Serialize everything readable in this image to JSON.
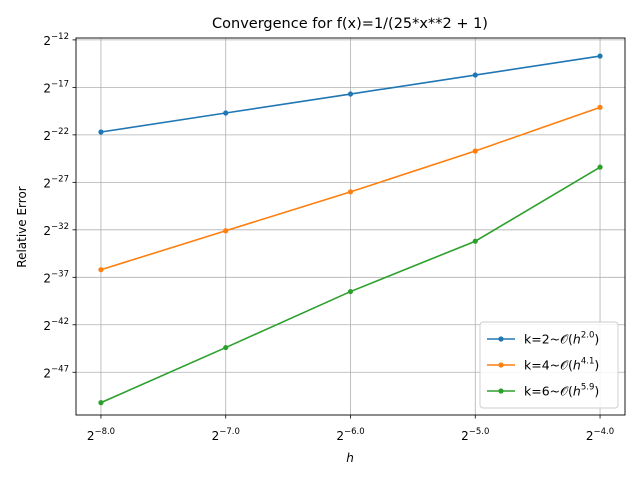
{
  "chart_data": {
    "type": "line",
    "title": "Convergence for f(x)=1/(25*x**2 + 1)",
    "xlabel": "h",
    "ylabel": "Relative Error",
    "x_scale": "log2",
    "y_scale": "log2",
    "x": [
      -8.0,
      -7.0,
      -6.0,
      -5.0,
      -4.0
    ],
    "x_ticks": [
      -8.0,
      -7.0,
      -6.0,
      -5.0,
      -4.0
    ],
    "x_tick_labels": [
      "−8.0",
      "−7.0",
      "−6.0",
      "−5.0",
      "−4.0"
    ],
    "y_ticks": [
      -47,
      -42,
      -37,
      -32,
      -27,
      -22,
      -17,
      -12
    ],
    "y_tick_labels": [
      "−47",
      "−42",
      "−37",
      "−32",
      "−27",
      "−22",
      "−17",
      "−12"
    ],
    "xlim": [
      -8.2,
      -3.8
    ],
    "ylim": [
      -51.5,
      -11.8
    ],
    "grid": true,
    "legend_position": "lower-right",
    "series": [
      {
        "name": "k=2~𝒪(h^2.0)",
        "label_main": "k=2~𝒪(",
        "label_var": "h",
        "label_exp": "2.0",
        "label_end": ")",
        "color": "#1f77b4",
        "values": [
          -21.7,
          -19.7,
          -17.7,
          -15.7,
          -13.7
        ]
      },
      {
        "name": "k=4~𝒪(h^4.1)",
        "label_main": "k=4~𝒪(",
        "label_var": "h",
        "label_exp": "4.1",
        "label_end": ")",
        "color": "#ff7f0e",
        "values": [
          -36.2,
          -32.1,
          -28.0,
          -23.7,
          -19.1
        ]
      },
      {
        "name": "k=6~𝒪(h^5.9)",
        "label_main": "k=6~𝒪(",
        "label_var": "h",
        "label_exp": "5.9",
        "label_end": ")",
        "color": "#2ca02c",
        "values": [
          -50.2,
          -44.4,
          -38.5,
          -33.2,
          -25.4
        ]
      }
    ]
  }
}
